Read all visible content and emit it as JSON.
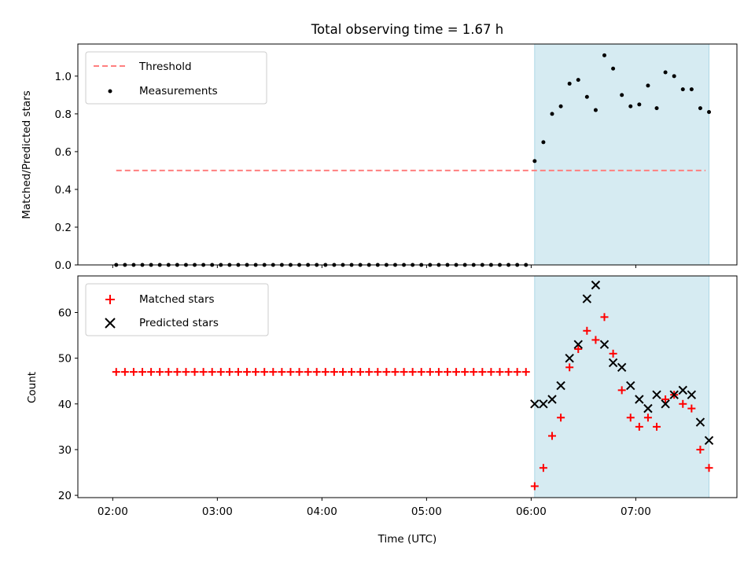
{
  "title": "Total observing time = 1.67 h",
  "colors": {
    "threshold": "#ff7f7f",
    "measurements": "#000000",
    "matched": "#ff0000",
    "predicted": "#000000",
    "shade": "#add8e6"
  },
  "chart_data": [
    {
      "type": "scatter",
      "ylabel": "Matched/Predicted stars",
      "xlabel": "",
      "xlim": [
        "01:40",
        "07:58"
      ],
      "ylim": [
        0,
        1.17
      ],
      "xticks": [
        "02:00",
        "03:00",
        "04:00",
        "05:00",
        "06:00",
        "07:00"
      ],
      "yticks": [
        "0.0",
        "0.2",
        "0.4",
        "0.6",
        "0.8",
        "1.0"
      ],
      "legend": [
        "Threshold",
        "Measurements"
      ],
      "legend_position": "top-left",
      "shaded_region": [
        "06:02",
        "07:42"
      ],
      "threshold": {
        "x": [
          "02:02",
          "07:40"
        ],
        "y": 0.5
      },
      "measurements": {
        "x": [
          "02:02",
          "02:07",
          "02:12",
          "02:17",
          "02:22",
          "02:27",
          "02:32",
          "02:37",
          "02:42",
          "02:47",
          "02:52",
          "02:57",
          "03:02",
          "03:07",
          "03:12",
          "03:17",
          "03:22",
          "03:27",
          "03:32",
          "03:37",
          "03:42",
          "03:47",
          "03:52",
          "03:57",
          "04:02",
          "04:07",
          "04:12",
          "04:17",
          "04:22",
          "04:27",
          "04:32",
          "04:37",
          "04:42",
          "04:47",
          "04:52",
          "04:57",
          "05:02",
          "05:07",
          "05:12",
          "05:17",
          "05:22",
          "05:27",
          "05:32",
          "05:37",
          "05:42",
          "05:47",
          "05:52",
          "05:57",
          "06:02",
          "06:07",
          "06:12",
          "06:17",
          "06:22",
          "06:27",
          "06:32",
          "06:37",
          "06:42",
          "06:47",
          "06:52",
          "06:57",
          "07:02",
          "07:07",
          "07:12",
          "07:17",
          "07:22",
          "07:27",
          "07:32",
          "07:37",
          "07:42"
        ],
        "y": [
          0,
          0,
          0,
          0,
          0,
          0,
          0,
          0,
          0,
          0,
          0,
          0,
          0,
          0,
          0,
          0,
          0,
          0,
          0,
          0,
          0,
          0,
          0,
          0,
          0,
          0,
          0,
          0,
          0,
          0,
          0,
          0,
          0,
          0,
          0,
          0,
          0,
          0,
          0,
          0,
          0,
          0,
          0,
          0,
          0,
          0,
          0,
          0,
          0.55,
          0.65,
          0.8,
          0.84,
          0.96,
          0.98,
          0.89,
          0.82,
          1.11,
          1.04,
          0.9,
          0.84,
          0.85,
          0.95,
          0.83,
          1.02,
          1.0,
          0.93,
          0.93,
          0.83,
          0.81
        ]
      }
    },
    {
      "type": "scatter",
      "ylabel": "Count",
      "xlabel": "Time (UTC)",
      "xlim": [
        "01:40",
        "07:58"
      ],
      "ylim": [
        19.5,
        68
      ],
      "xticks": [
        "02:00",
        "03:00",
        "04:00",
        "05:00",
        "06:00",
        "07:00"
      ],
      "yticks": [
        "20",
        "30",
        "40",
        "50",
        "60"
      ],
      "legend": [
        "Matched stars",
        "Predicted stars"
      ],
      "legend_position": "top-left",
      "shaded_region": [
        "06:02",
        "07:42"
      ],
      "matched": {
        "x": [
          "02:02",
          "02:07",
          "02:12",
          "02:17",
          "02:22",
          "02:27",
          "02:32",
          "02:37",
          "02:42",
          "02:47",
          "02:52",
          "02:57",
          "03:02",
          "03:07",
          "03:12",
          "03:17",
          "03:22",
          "03:27",
          "03:32",
          "03:37",
          "03:42",
          "03:47",
          "03:52",
          "03:57",
          "04:02",
          "04:07",
          "04:12",
          "04:17",
          "04:22",
          "04:27",
          "04:32",
          "04:37",
          "04:42",
          "04:47",
          "04:52",
          "04:57",
          "05:02",
          "05:07",
          "05:12",
          "05:17",
          "05:22",
          "05:27",
          "05:32",
          "05:37",
          "05:42",
          "05:47",
          "05:52",
          "05:57",
          "06:02",
          "06:07",
          "06:12",
          "06:17",
          "06:22",
          "06:27",
          "06:32",
          "06:37",
          "06:42",
          "06:47",
          "06:52",
          "06:57",
          "07:02",
          "07:07",
          "07:12",
          "07:17",
          "07:22",
          "07:27",
          "07:32",
          "07:37",
          "07:42"
        ],
        "y": [
          47,
          47,
          47,
          47,
          47,
          47,
          47,
          47,
          47,
          47,
          47,
          47,
          47,
          47,
          47,
          47,
          47,
          47,
          47,
          47,
          47,
          47,
          47,
          47,
          47,
          47,
          47,
          47,
          47,
          47,
          47,
          47,
          47,
          47,
          47,
          47,
          47,
          47,
          47,
          47,
          47,
          47,
          47,
          47,
          47,
          47,
          47,
          47,
          22,
          26,
          33,
          37,
          48,
          52,
          56,
          54,
          59,
          51,
          43,
          37,
          35,
          37,
          35,
          41,
          42,
          40,
          39,
          30,
          26
        ]
      },
      "predicted": {
        "x": [
          "06:02",
          "06:07",
          "06:12",
          "06:17",
          "06:22",
          "06:27",
          "06:32",
          "06:37",
          "06:42",
          "06:47",
          "06:52",
          "06:57",
          "07:02",
          "07:07",
          "07:12",
          "07:17",
          "07:22",
          "07:27",
          "07:32",
          "07:37",
          "07:42"
        ],
        "y": [
          40,
          40,
          41,
          44,
          50,
          53,
          63,
          66,
          53,
          49,
          48,
          44,
          41,
          39,
          42,
          40,
          42,
          43,
          42,
          36,
          32
        ]
      }
    }
  ]
}
